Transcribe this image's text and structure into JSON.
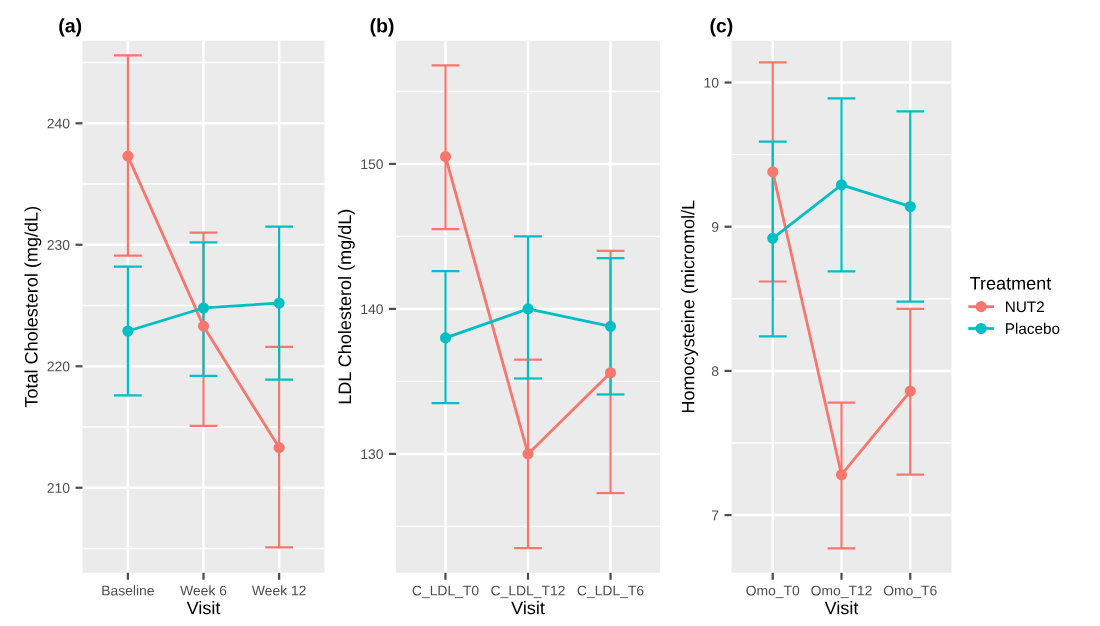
{
  "chart_data": [
    {
      "type": "line",
      "title": "(a)",
      "xlabel": "Visit",
      "ylabel": "Total Cholesterol (mg/dL)",
      "categories": [
        "Baseline",
        "Week 6",
        "Week 12"
      ],
      "ylim": [
        203,
        246.8
      ],
      "yticks": [
        210,
        220,
        230,
        240
      ],
      "grid": true,
      "marker": "circle",
      "line_style": "solid",
      "series": [
        {
          "color": "#f8766d",
          "values": [
            237.3,
            223.3,
            213.3
          ],
          "errors": [
            [
              229.1,
              245.6
            ],
            [
              215.1,
              231.0
            ],
            [
              205.1,
              221.6
            ]
          ]
        },
        {
          "color": "#00bfc4",
          "values": [
            222.9,
            224.8,
            225.2
          ],
          "errors": [
            [
              217.6,
              228.2
            ],
            [
              219.2,
              230.2
            ],
            [
              218.9,
              231.5
            ]
          ]
        }
      ]
    },
    {
      "type": "line",
      "title": "(b)",
      "xlabel": "Visit",
      "ylabel": "LDL Cholesterol (mg/dL)",
      "categories": [
        "C_LDL_T0",
        "C_LDL_T12",
        "C_LDL_T6"
      ],
      "ylim": [
        121.8,
        158.5
      ],
      "yticks": [
        130,
        140,
        150
      ],
      "grid": true,
      "marker": "circle",
      "line_style": "solid",
      "series": [
        {
          "color": "#f8766d",
          "values": [
            150.5,
            130.0,
            135.6
          ],
          "errors": [
            [
              145.5,
              156.8
            ],
            [
              123.5,
              136.5
            ],
            [
              127.3,
              144.0
            ]
          ]
        },
        {
          "color": "#00bfc4",
          "values": [
            138.0,
            140.0,
            138.8
          ],
          "errors": [
            [
              133.5,
              142.6
            ],
            [
              135.2,
              145.0
            ],
            [
              134.1,
              143.5
            ]
          ]
        }
      ]
    },
    {
      "type": "line",
      "title": "(c)",
      "xlabel": "Visit",
      "ylabel": "Homocysteine (micromol/L",
      "categories": [
        "Omo_T0",
        "Omo_T12",
        "Omo_T6"
      ],
      "ylim": [
        6.6,
        10.29
      ],
      "yticks": [
        7,
        8,
        9,
        10
      ],
      "grid": true,
      "marker": "circle",
      "line_style": "solid",
      "legend": "right",
      "legend_title": "Treatment",
      "series": [
        {
          "name": "NUT2",
          "color": "#f8766d",
          "values": [
            9.38,
            7.28,
            7.86
          ],
          "errors": [
            [
              8.62,
              10.14
            ],
            [
              6.77,
              7.78
            ],
            [
              7.28,
              8.43
            ]
          ]
        },
        {
          "name": "Placebo",
          "color": "#00bfc4",
          "values": [
            8.92,
            9.29,
            9.14
          ],
          "errors": [
            [
              8.24,
              9.59
            ],
            [
              8.69,
              9.89
            ],
            [
              8.48,
              9.8
            ]
          ]
        }
      ]
    }
  ]
}
